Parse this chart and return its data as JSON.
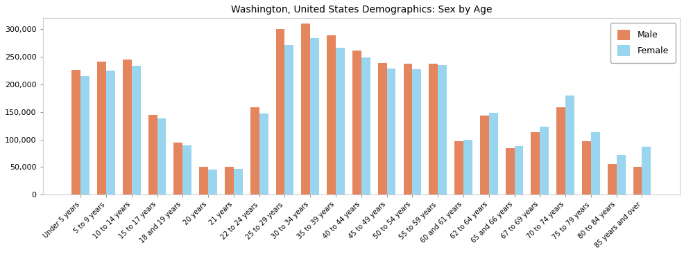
{
  "title": "Washington, United States Demographics: Sex by Age",
  "categories": [
    "Under 5 years",
    "5 to 9 years",
    "10 to 14 years",
    "15 to 17 years",
    "18 and 19 years",
    "20 years",
    "21 years",
    "22 to 24 years",
    "25 to 29 years",
    "30 to 34 years",
    "35 to 39 years",
    "40 to 44 years",
    "45 to 49 years",
    "50 to 54 years",
    "55 to 59 years",
    "60 and 61 years",
    "62 to 64 years",
    "65 and 66 years",
    "67 to 69 years",
    "70 to 74 years",
    "75 to 79 years",
    "80 to 84 years",
    "85 years and over"
  ],
  "male": [
    226000,
    241000,
    245000,
    145000,
    95000,
    50000,
    51000,
    159000,
    300000,
    310000,
    289000,
    261000,
    239000,
    238000,
    237000,
    97000,
    143000,
    84000,
    113000,
    159000,
    97000,
    56000,
    50000
  ],
  "female": [
    215000,
    225000,
    234000,
    138000,
    90000,
    46000,
    47000,
    147000,
    271000,
    284000,
    267000,
    249000,
    229000,
    228000,
    235000,
    99000,
    148000,
    88000,
    123000,
    180000,
    113000,
    72000,
    87000
  ],
  "male_color": "#E07040",
  "female_color": "#87CEEB",
  "ylim": [
    0,
    320000
  ],
  "yticks": [
    0,
    50000,
    100000,
    150000,
    200000,
    250000,
    300000
  ],
  "ytick_labels": [
    "0",
    "50,000",
    "100,000",
    "150,000",
    "200,000",
    "250,000",
    "300,000"
  ],
  "title_fontsize": 10,
  "legend_labels": [
    "Male",
    "Female"
  ],
  "bar_width": 0.35,
  "figsize": [
    9.87,
    3.67
  ],
  "dpi": 100
}
